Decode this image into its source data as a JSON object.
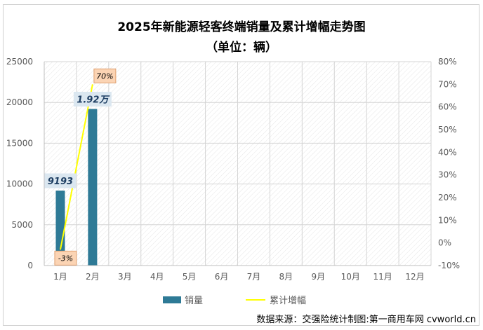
{
  "chart_data": {
    "type": "bar+line",
    "title": "2025年新能源轻客终端销量及累计增幅走势图",
    "subtitle": "（单位：辆）",
    "categories": [
      "1月",
      "2月",
      "3月",
      "4月",
      "5月",
      "6月",
      "7月",
      "8月",
      "9月",
      "10月",
      "11月",
      "12月"
    ],
    "series": [
      {
        "name": "销量",
        "type": "bar",
        "axis": "left",
        "color": "#2e7a96",
        "values": [
          9193,
          19200,
          null,
          null,
          null,
          null,
          null,
          null,
          null,
          null,
          null,
          null
        ],
        "data_labels": [
          "9193",
          "1.92万",
          "",
          "",
          "",
          "",
          "",
          "",
          "",
          "",
          "",
          ""
        ]
      },
      {
        "name": "累计增幅",
        "type": "line",
        "axis": "right",
        "color": "#ffff00",
        "values": [
          -3,
          70,
          null,
          null,
          null,
          null,
          null,
          null,
          null,
          null,
          null,
          null
        ],
        "data_labels": [
          "-3%",
          "70%",
          "",
          "",
          "",
          "",
          "",
          "",
          "",
          "",
          "",
          ""
        ]
      }
    ],
    "y_left": {
      "min": 0,
      "max": 25000,
      "ticks": [
        "0",
        "5000",
        "10000",
        "15000",
        "20000",
        "25000"
      ]
    },
    "y_right": {
      "min": -10,
      "max": 80,
      "ticks": [
        "-10%",
        "0%",
        "10%",
        "20%",
        "30%",
        "40%",
        "50%",
        "60%",
        "70%",
        "80%"
      ]
    },
    "grid": true,
    "legend": "bottom-center"
  },
  "source_note": "数据来源：交强险统计制图:第一商用车网 cvworld.cn"
}
